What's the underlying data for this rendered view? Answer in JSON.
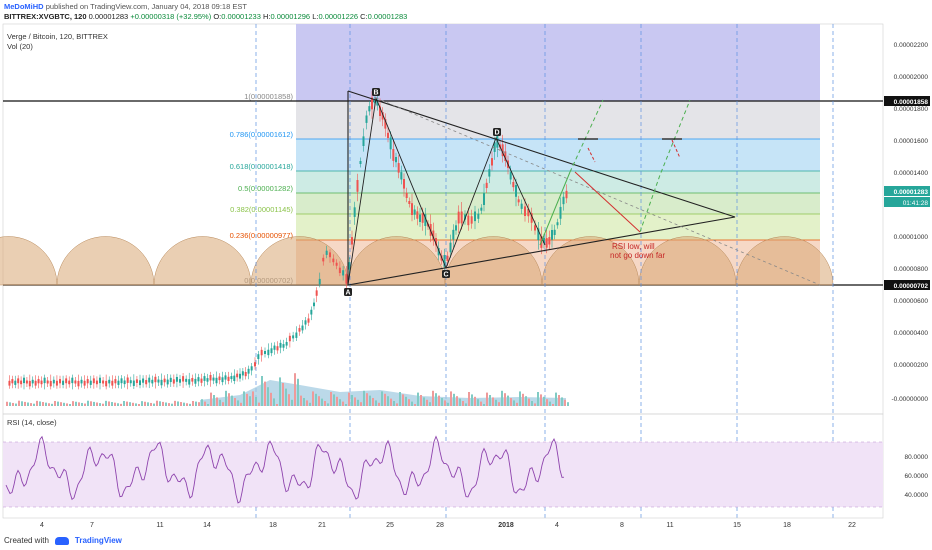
{
  "header": {
    "author": "MeDoMiHD",
    "published": "published on TradingView.com, January 04, 2018 09:18 EST",
    "symbol": "BITTREX:XVGBTC, 120",
    "last": "0.00001283",
    "change": "+0.00000318 (+32.95%)",
    "o_label": "O:",
    "o_value": "0.00001233",
    "h_label": "H:",
    "h_value": "0.00001296",
    "l_label": "L:",
    "l_value": "0.00001226",
    "c_label": "C:",
    "c_value": "0.00001283"
  },
  "chart": {
    "title": "Verge / Bitcoin, 120, BITTREX",
    "volume_label": "Vol (20)",
    "rsi_label": "RSI (14, close)",
    "price_axis": [
      "0.00002200",
      "0.00002000",
      "0.00001800",
      "0.00001600",
      "0.00001400",
      "0.00001200",
      "0.00001000",
      "0.00000800",
      "0.00000600",
      "0.00000400",
      "0.00000200",
      "-0.00000000"
    ],
    "rsi_axis": [
      "80.0000",
      "60.0000",
      "40.0000"
    ],
    "highlight_upper": "0.00001858",
    "highlight_current": "0.00001283",
    "countdown": "01:41:28",
    "highlight_lower": "0.00000702",
    "time_axis": [
      "4",
      "7",
      "11",
      "14",
      "18",
      "21",
      "25",
      "28",
      "2018",
      "4",
      "8",
      "11",
      "15",
      "18",
      "22"
    ],
    "fib_levels": [
      {
        "label": "1(0.00001858)",
        "color": "#888888"
      },
      {
        "label": "0.786(0.00001612)",
        "color": "#2196f3"
      },
      {
        "label": "0.618(0.00001418)",
        "color": "#26a69a"
      },
      {
        "label": "0.5(0.00001282)",
        "color": "#4caf50"
      },
      {
        "label": "0.382(0.00001145)",
        "color": "#8bc34a"
      },
      {
        "label": "0.236(0.00000977)",
        "color": "#e65100"
      },
      {
        "label": "0(0.00000702)",
        "color": "#888888"
      }
    ],
    "points": [
      "A",
      "B",
      "C",
      "D"
    ],
    "annotation_line1": "RSI low, will",
    "annotation_line2": "not go down far"
  },
  "footer": {
    "created_with": "Created with",
    "brand": "TradingView"
  }
}
